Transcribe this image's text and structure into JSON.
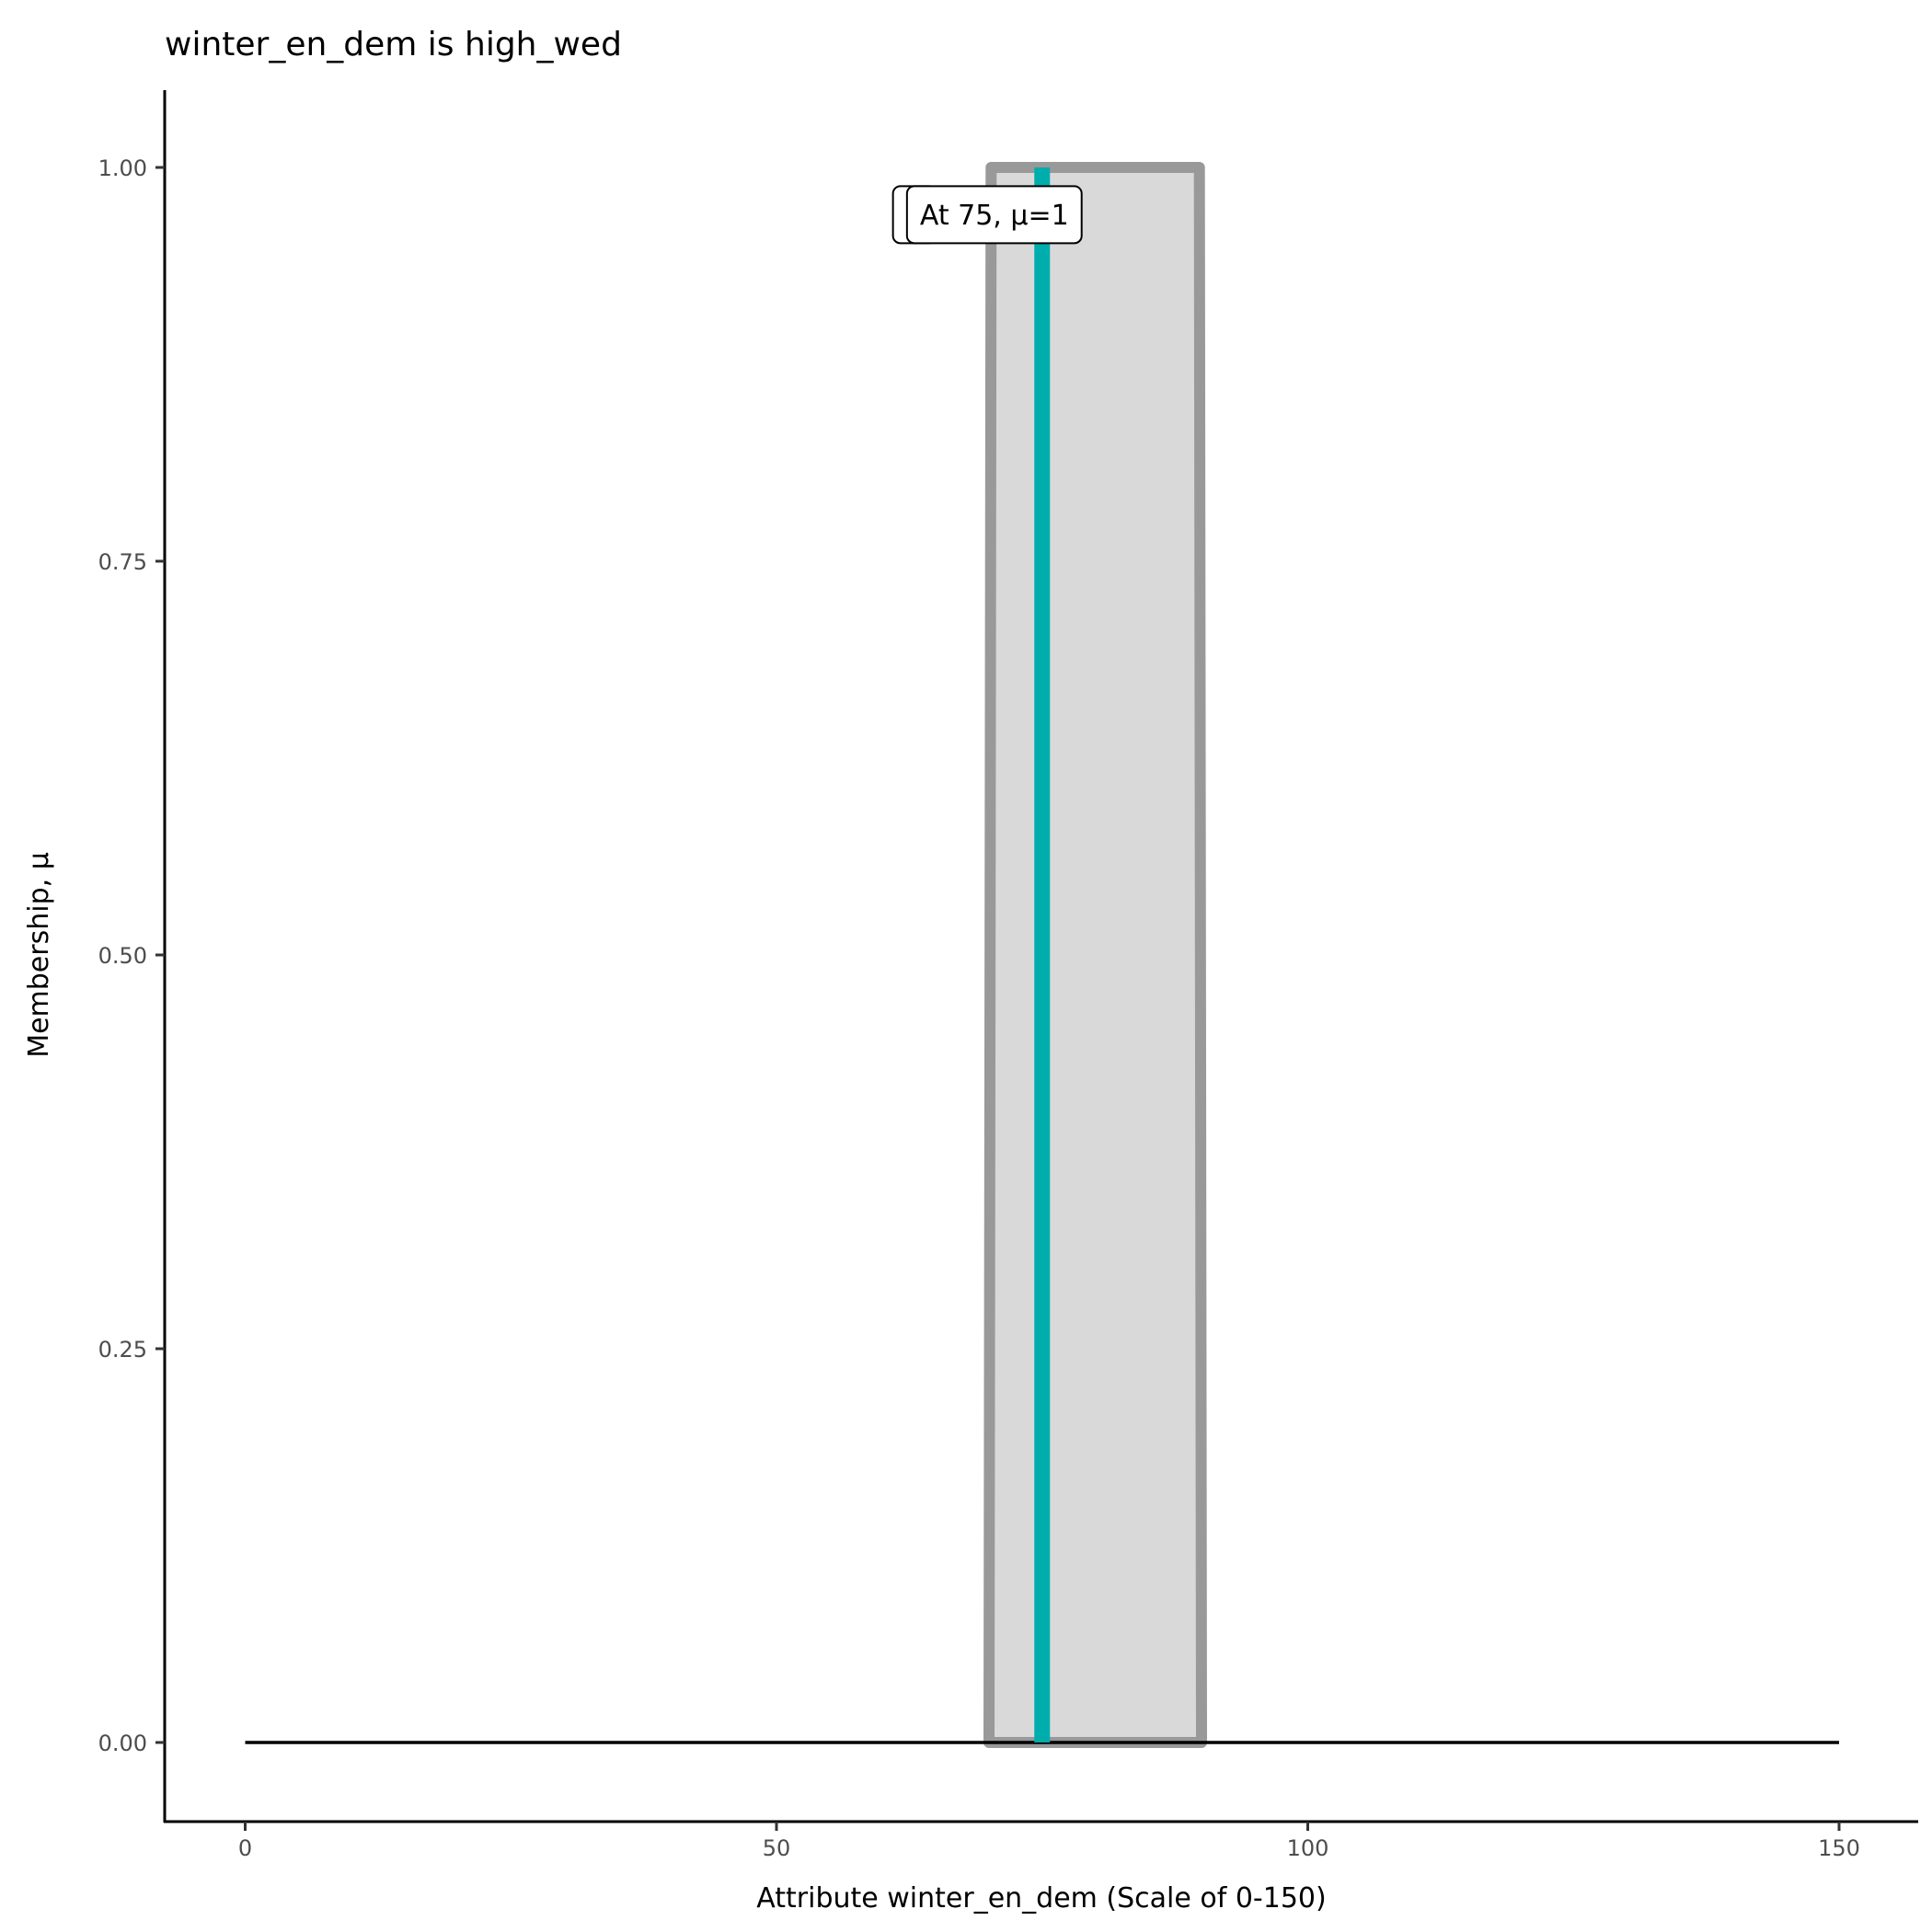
{
  "chart_data": {
    "type": "area",
    "title": "winter_en_dem is high_wed",
    "xlabel": "Attribute winter_en_dem (Scale of 0-150)",
    "ylabel": "Membership, μ",
    "xlim": [
      -7.5,
      157.5
    ],
    "ylim": [
      -0.05,
      1.05
    ],
    "x_ticks": [
      0,
      50,
      100,
      150
    ],
    "x_tick_labels": [
      "0",
      "50",
      "100",
      "150"
    ],
    "y_ticks": [
      0,
      0.25,
      0.5,
      0.75,
      1
    ],
    "y_tick_labels": [
      "0.00",
      "0.25",
      "0.50",
      "0.75",
      "1.00"
    ],
    "grid": false,
    "membership_shape": [
      [
        70,
        0
      ],
      [
        70.2,
        1
      ],
      [
        89.8,
        1
      ],
      [
        90,
        0
      ]
    ],
    "baseline": [
      [
        0,
        0
      ],
      [
        150,
        0
      ]
    ],
    "marker": {
      "x": 75,
      "mu": 1
    },
    "labels": [
      {
        "text": "h",
        "x": 63,
        "y": 0.97
      },
      {
        "text": "At 75, μ=1",
        "x": 70.5,
        "y": 0.97
      }
    ],
    "colors": {
      "shape_fill": "#d9d9d9",
      "shape_stroke": "#999999",
      "marker": "#00adad",
      "baseline": "#000000"
    }
  }
}
